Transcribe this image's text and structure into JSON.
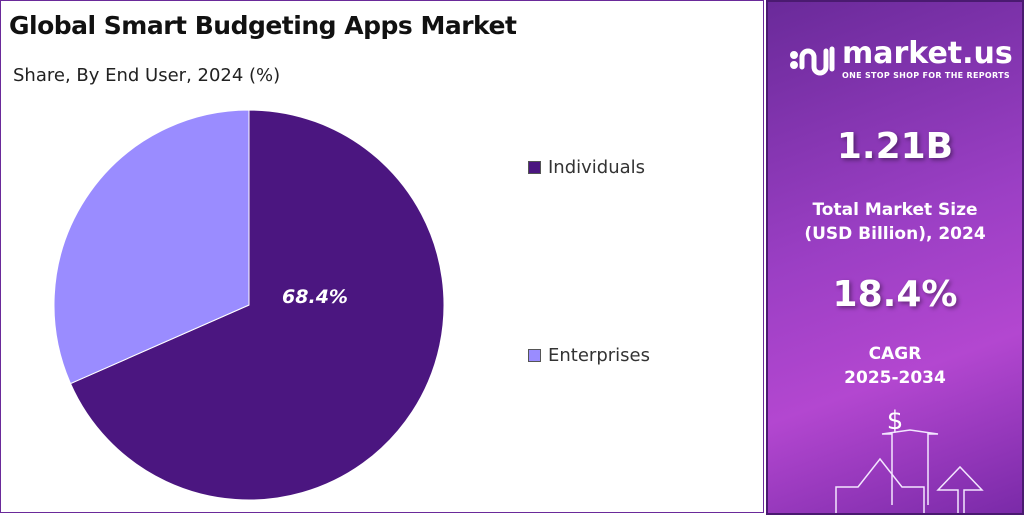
{
  "chart_data": {
    "type": "pie",
    "title": "Global Smart Budgeting Apps Market",
    "subtitle": "Share, By End User, 2024 (%)",
    "categories": [
      "Individuals",
      "Enterprises"
    ],
    "values": [
      68.4,
      31.6
    ],
    "data_labels": [
      "68.4%",
      ""
    ],
    "colors": [
      "#4b1680",
      "#9a8cff"
    ],
    "legend_placement": "right"
  },
  "sidebar": {
    "logo_text": "market.us",
    "logo_tagline": "ONE STOP SHOP FOR THE REPORTS",
    "market_size": "1.21B",
    "market_size_label_1": "Total Market Size",
    "market_size_label_2": "(USD Billion), 2024",
    "cagr": "18.4%",
    "cagr_label_1": "CAGR",
    "cagr_label_2": "2025-2034",
    "dollar_symbol": "$"
  }
}
